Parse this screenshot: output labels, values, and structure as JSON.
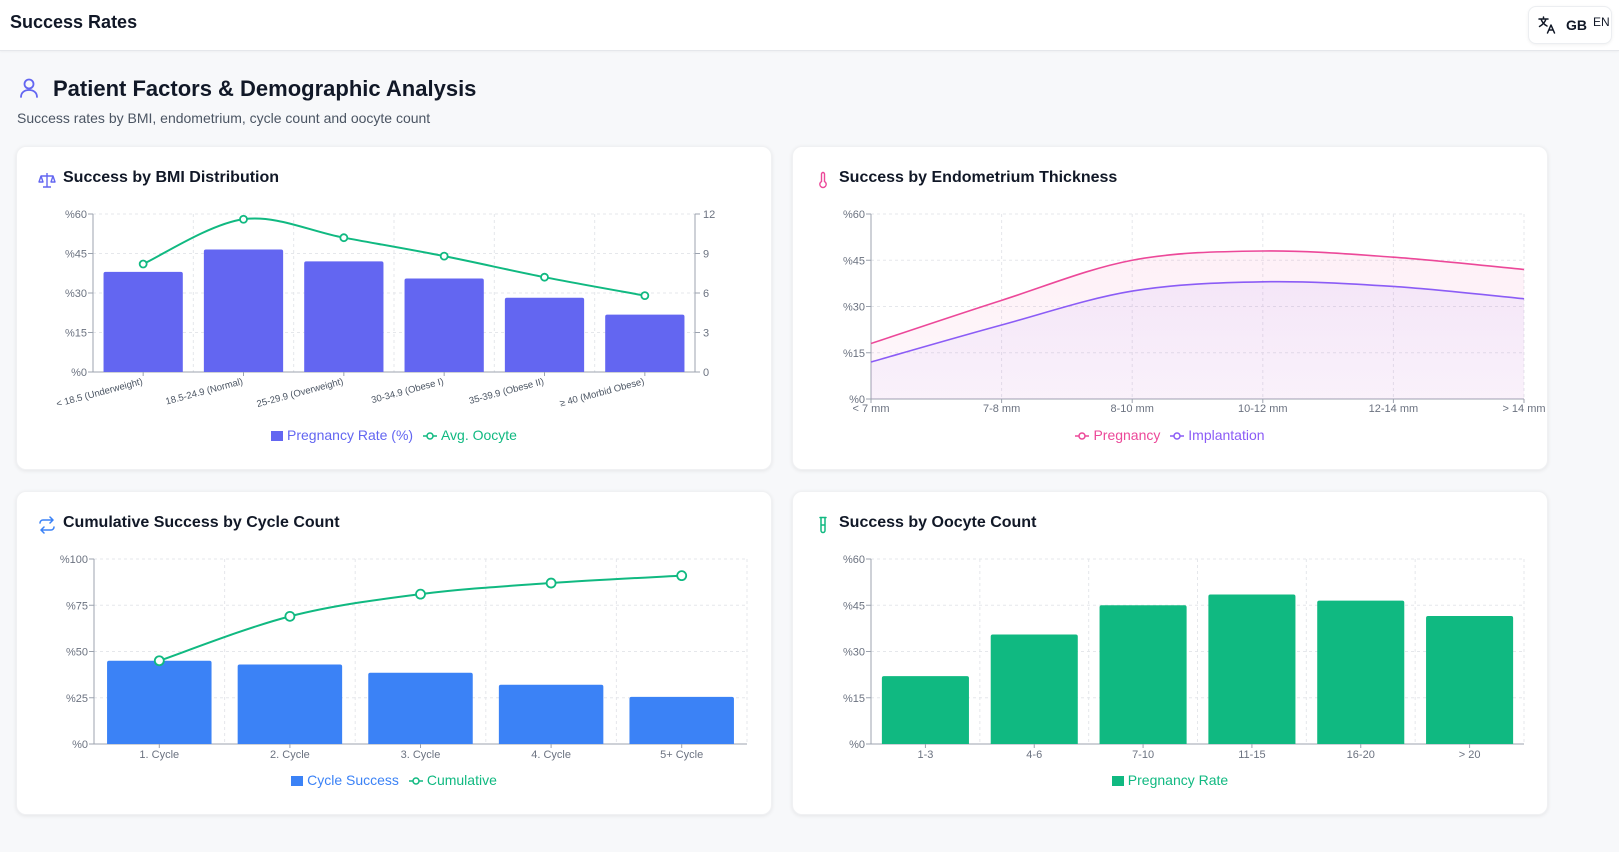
{
  "app": {
    "title": "Success Rates"
  },
  "language": {
    "flag": "GB",
    "code": "EN",
    "icon": "translate-icon"
  },
  "section": {
    "title": "Patient Factors & Demographic Analysis",
    "subtitle": "Success rates by BMI, endometrium, cycle count and oocyte count",
    "icon": "user-icon"
  },
  "colors": {
    "indigo": "#6366f1",
    "green": "#10b981",
    "pink": "#ec4899",
    "purple": "#8b5cf6",
    "blue": "#3b82f6",
    "grid": "#e5e7eb"
  },
  "cards": {
    "bmi": {
      "title": "Success by BMI Distribution",
      "icon": "scale-icon"
    },
    "endo": {
      "title": "Success by Endometrium Thickness",
      "icon": "thermometer-icon"
    },
    "cycle": {
      "title": "Cumulative Success by Cycle Count",
      "icon": "repeat-icon"
    },
    "oocyte": {
      "title": "Success by Oocyte Count",
      "icon": "test-tube-icon"
    }
  },
  "chart_data": [
    {
      "id": "bmi",
      "type": "bar",
      "title": "Success by BMI Distribution",
      "categories": [
        "< 18.5 (Underweight)",
        "18.5-24.9 (Normal)",
        "25-29.9 (Overweight)",
        "30-34.9 (Obese I)",
        "35-39.9 (Obese II)",
        "≥ 40 (Morbid Obese)"
      ],
      "series": [
        {
          "name": "Pregnancy Rate (%)",
          "type": "bar",
          "axis": "left",
          "color": "#6366f1",
          "values": [
            38,
            46.5,
            42,
            35.5,
            28.2,
            21.8
          ]
        },
        {
          "name": "Avg. Oocyte",
          "type": "line",
          "axis": "right",
          "color": "#10b981",
          "values": [
            8.2,
            11.6,
            10.2,
            8.8,
            7.2,
            5.8
          ]
        }
      ],
      "yticks": [
        "%0",
        "%15",
        "%30",
        "%45",
        "%60"
      ],
      "ylim": [
        0,
        60
      ],
      "y2ticks": [
        "0",
        "3",
        "6",
        "9",
        "12"
      ],
      "y2lim": [
        0,
        12
      ],
      "legend": "bottom"
    },
    {
      "id": "endo",
      "type": "area",
      "title": "Success by Endometrium Thickness",
      "categories": [
        "< 7 mm",
        "7-8 mm",
        "8-10 mm",
        "10-12 mm",
        "12-14 mm",
        "> 14 mm"
      ],
      "series": [
        {
          "name": "Pregnancy",
          "color": "#ec4899",
          "values": [
            18,
            32,
            45,
            48,
            46,
            42
          ]
        },
        {
          "name": "Implantation",
          "color": "#8b5cf6",
          "values": [
            12,
            24,
            35,
            38,
            36.5,
            32.5
          ]
        }
      ],
      "yticks": [
        "%0",
        "%15",
        "%30",
        "%45",
        "%60"
      ],
      "ylim": [
        0,
        60
      ],
      "legend": "bottom"
    },
    {
      "id": "cycle",
      "type": "bar",
      "title": "Cumulative Success by Cycle Count",
      "categories": [
        "1. Cycle",
        "2. Cycle",
        "3. Cycle",
        "4. Cycle",
        "5+ Cycle"
      ],
      "series": [
        {
          "name": "Cycle Success",
          "type": "bar",
          "color": "#3b82f6",
          "values": [
            45,
            43,
            38.5,
            32,
            25.5
          ]
        },
        {
          "name": "Cumulative",
          "type": "line",
          "color": "#10b981",
          "values": [
            45,
            69,
            81,
            87,
            91
          ]
        }
      ],
      "yticks": [
        "%0",
        "%25",
        "%50",
        "%75",
        "%100"
      ],
      "ylim": [
        0,
        100
      ],
      "legend": "bottom"
    },
    {
      "id": "oocyte",
      "type": "bar",
      "title": "Success by Oocyte Count",
      "categories": [
        "1-3",
        "4-6",
        "7-10",
        "11-15",
        "16-20",
        "> 20"
      ],
      "series": [
        {
          "name": "Pregnancy Rate",
          "type": "bar",
          "color": "#10b981",
          "values": [
            22,
            35.5,
            45,
            48.5,
            46.5,
            41.5
          ]
        }
      ],
      "yticks": [
        "%0",
        "%15",
        "%30",
        "%45",
        "%60"
      ],
      "ylim": [
        0,
        60
      ],
      "legend": "bottom"
    }
  ]
}
